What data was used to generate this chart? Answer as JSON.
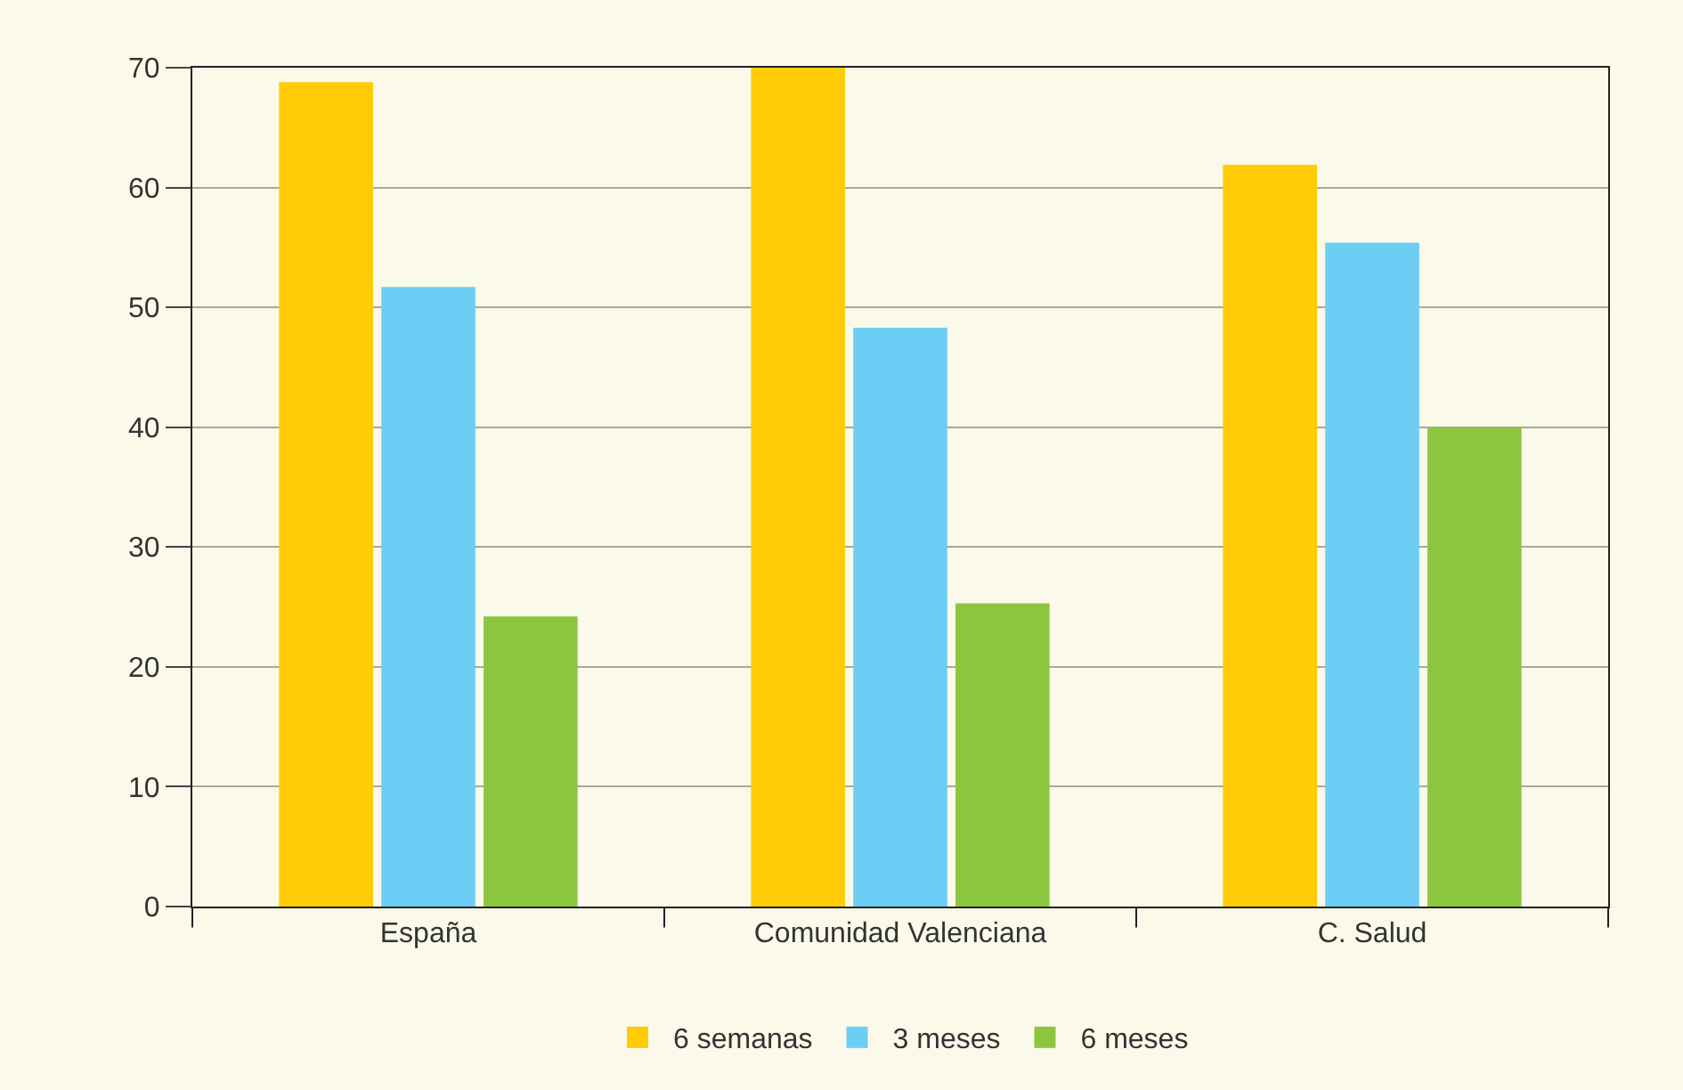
{
  "chart_data": {
    "type": "bar",
    "categories": [
      "España",
      "Comunidad Valenciana",
      "C. Salud"
    ],
    "series": [
      {
        "name": "6 semanas",
        "color": "#ffcc05",
        "values": [
          68.8,
          70,
          61.9
        ]
      },
      {
        "name": "3 meses",
        "color": "#6dcef5",
        "values": [
          51.7,
          48.3,
          55.4
        ]
      },
      {
        "name": "6 meses",
        "color": "#8cc63f",
        "values": [
          24.2,
          25.3,
          40
        ]
      }
    ],
    "ylim": [
      0,
      70
    ],
    "yticks": [
      0,
      10,
      20,
      30,
      40,
      50,
      60,
      70
    ],
    "grid": "y",
    "legend": "bottom"
  }
}
